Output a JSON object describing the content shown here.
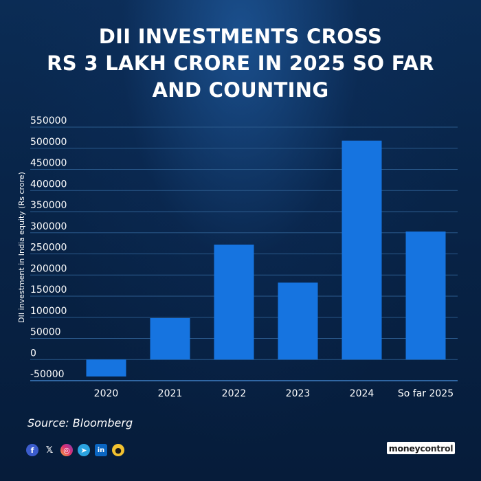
{
  "title_lines": [
    "DII INVESTMENTS CROSS",
    "RS 3 LAKH CRORE IN 2025 SO FAR",
    "AND COUNTING"
  ],
  "source": "Source: Bloomberg",
  "brand": {
    "part1": "money",
    "part2": "control"
  },
  "social_icons": [
    "facebook-icon",
    "x-icon",
    "instagram-icon",
    "telegram-icon",
    "linkedin-icon",
    "koo-icon"
  ],
  "chart_data": {
    "type": "bar",
    "title": "DII INVESTMENTS CROSS RS 3 LAKH CRORE IN 2025 SO FAR AND COUNTING",
    "xlabel": "",
    "ylabel": "DII investment in India equity (Rs crore)",
    "categories": [
      "2020",
      "2021",
      "2022",
      "2023",
      "2024",
      "So far 2025"
    ],
    "values": [
      -40000,
      98000,
      272000,
      182000,
      518000,
      303000
    ],
    "ylim": [
      -50000,
      550000
    ],
    "yticks": [
      -50000,
      0,
      50000,
      100000,
      150000,
      200000,
      250000,
      300000,
      350000,
      400000,
      450000,
      500000,
      550000
    ],
    "grid": true,
    "legend": "none",
    "bar_color": "#1674e0",
    "grid_color": "#2b5a8c"
  }
}
